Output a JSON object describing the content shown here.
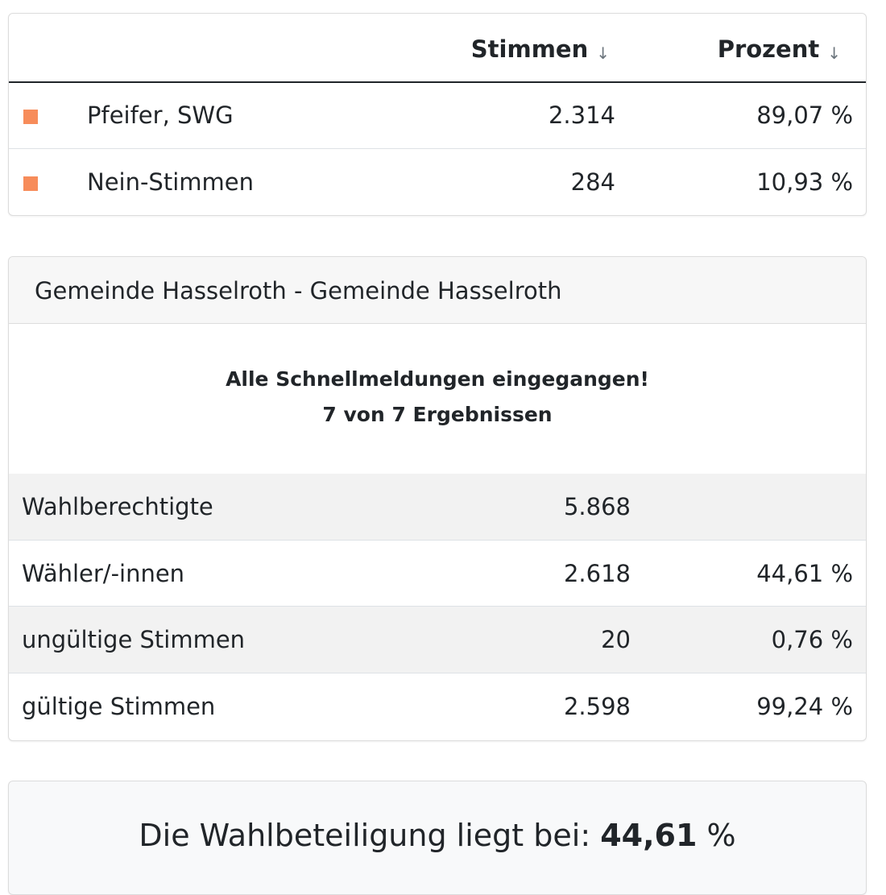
{
  "results": {
    "columns": {
      "votes": "Stimmen",
      "percent": "Prozent",
      "sort_icon": "↓"
    },
    "rows": [
      {
        "name": "Pfeifer, SWG",
        "votes": "2.314",
        "percent": "89,07 %",
        "color": "#f78c5a"
      },
      {
        "name": "Nein-Stimmen",
        "votes": "284",
        "percent": "10,93 %",
        "color": "#f78c5a"
      }
    ]
  },
  "municipality": {
    "title": "Gemeinde Hasselroth - Gemeinde Hasselroth",
    "status_line_1": "Alle Schnellmeldungen eingegangen!",
    "status_line_2": "7 von 7 Ergebnissen",
    "stats": [
      {
        "label": "Wahlberechtigte",
        "count": "5.868",
        "percent": ""
      },
      {
        "label": "Wähler/-innen",
        "count": "2.618",
        "percent": "44,61 %"
      },
      {
        "label": "ungültige Stimmen",
        "count": "20",
        "percent": "0,76 %"
      },
      {
        "label": "gültige Stimmen",
        "count": "2.598",
        "percent": "99,24 %"
      }
    ]
  },
  "turnout": {
    "prefix": "Die Wahlbeteiligung liegt bei: ",
    "value": "44,61",
    "suffix": " %"
  }
}
